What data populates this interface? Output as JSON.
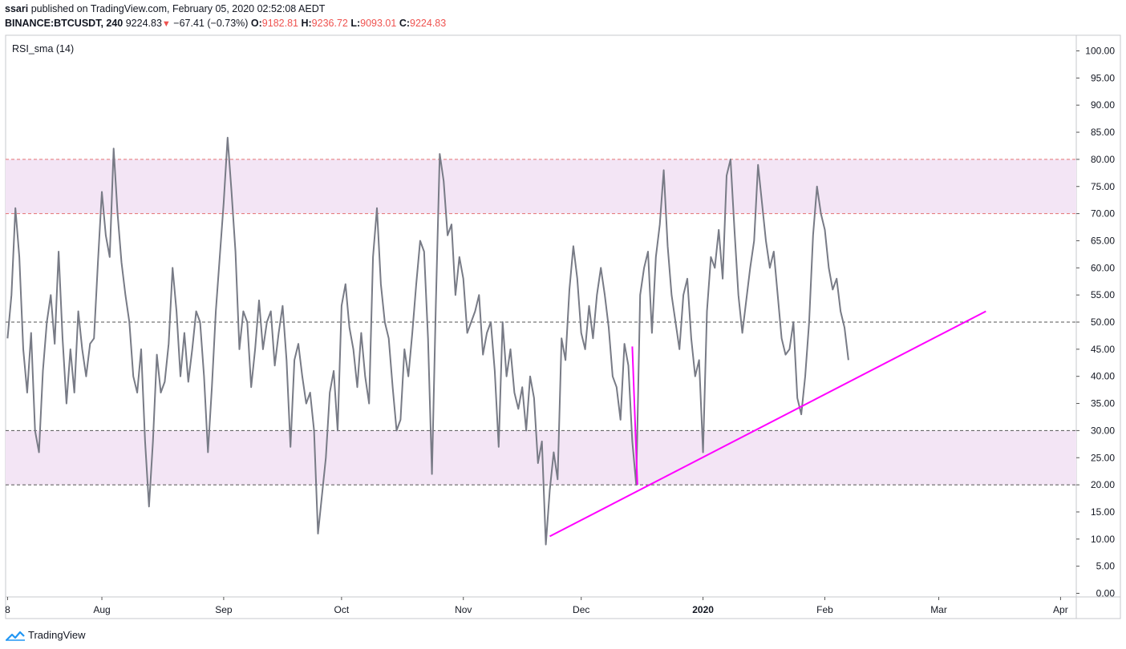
{
  "header": {
    "author": "ssari",
    "published_text": "published on TradingView.com, February 05, 2020 02:52:08 AEDT",
    "symbol": "BINANCE:BTCUSDT, 240",
    "last": "9224.83",
    "change_arrow": "▼",
    "change": "−67.41 (−0.73%)",
    "open_label": "O:",
    "open": "9182.81",
    "high_label": "H:",
    "high": "9236.72",
    "low_label": "L:",
    "low": "9093.01",
    "close_label": "C:",
    "close": "9224.83"
  },
  "footer": {
    "brand": "TradingView",
    "logo_icon": "tradingview-cloud-icon"
  },
  "colors": {
    "rsi_line": "#787b86",
    "trendline": "#ff00ff",
    "band_fill": "#f3e5f5",
    "band_line": "#e57373",
    "red": "#ef5350"
  },
  "chart_data": {
    "type": "line",
    "title": "RSI_sma (14)",
    "indicator": "RSI",
    "length": 14,
    "ylim": [
      0,
      100
    ],
    "y_ticks": [
      "100.00",
      "95.00",
      "90.00",
      "85.00",
      "80.00",
      "75.00",
      "70.00",
      "65.00",
      "60.00",
      "55.00",
      "50.00",
      "45.00",
      "40.00",
      "35.00",
      "30.00",
      "25.00",
      "20.00",
      "15.00",
      "10.00",
      "5.00",
      "0.00"
    ],
    "x_ticks": [
      "8",
      "Aug",
      "Sep",
      "Oct",
      "Nov",
      "Dec",
      "2020",
      "Feb",
      "Mar",
      "Apr"
    ],
    "x_tick_days": [
      0,
      24,
      55,
      85,
      116,
      146,
      177,
      208,
      237,
      268
    ],
    "x_range_days": [
      -0.5,
      272
    ],
    "bands": [
      {
        "from": 70,
        "to": 80,
        "name": "overbought"
      },
      {
        "from": 20,
        "to": 30,
        "name": "oversold"
      }
    ],
    "hlines": [
      80,
      70,
      50,
      30,
      20
    ],
    "series": [
      {
        "name": "RSI_sma (14)",
        "points": [
          [
            0,
            47
          ],
          [
            1,
            55
          ],
          [
            2,
            71
          ],
          [
            3,
            62
          ],
          [
            4,
            45
          ],
          [
            5,
            37
          ],
          [
            6,
            48
          ],
          [
            7,
            30
          ],
          [
            8,
            26
          ],
          [
            9,
            41
          ],
          [
            10,
            50
          ],
          [
            11,
            55
          ],
          [
            12,
            46
          ],
          [
            13,
            63
          ],
          [
            14,
            47
          ],
          [
            15,
            35
          ],
          [
            16,
            45
          ],
          [
            17,
            37
          ],
          [
            18,
            52
          ],
          [
            19,
            45
          ],
          [
            20,
            40
          ],
          [
            21,
            46
          ],
          [
            22,
            47
          ],
          [
            23,
            61
          ],
          [
            24,
            74
          ],
          [
            25,
            66
          ],
          [
            26,
            62
          ],
          [
            27,
            82
          ],
          [
            28,
            70
          ],
          [
            29,
            61
          ],
          [
            30,
            55
          ],
          [
            31,
            50
          ],
          [
            32,
            40
          ],
          [
            33,
            37
          ],
          [
            34,
            45
          ],
          [
            35,
            28
          ],
          [
            36,
            16
          ],
          [
            37,
            28
          ],
          [
            38,
            44
          ],
          [
            39,
            37
          ],
          [
            40,
            39
          ],
          [
            41,
            46
          ],
          [
            42,
            60
          ],
          [
            43,
            52
          ],
          [
            44,
            40
          ],
          [
            45,
            48
          ],
          [
            46,
            39
          ],
          [
            47,
            45
          ],
          [
            48,
            52
          ],
          [
            49,
            50
          ],
          [
            50,
            40
          ],
          [
            51,
            26
          ],
          [
            52,
            38
          ],
          [
            53,
            52
          ],
          [
            54,
            62
          ],
          [
            55,
            72
          ],
          [
            56,
            84
          ],
          [
            57,
            74
          ],
          [
            58,
            63
          ],
          [
            59,
            45
          ],
          [
            60,
            52
          ],
          [
            61,
            50
          ],
          [
            62,
            38
          ],
          [
            63,
            45
          ],
          [
            64,
            54
          ],
          [
            65,
            45
          ],
          [
            66,
            50
          ],
          [
            67,
            52
          ],
          [
            68,
            42
          ],
          [
            69,
            48
          ],
          [
            70,
            53
          ],
          [
            71,
            43
          ],
          [
            72,
            27
          ],
          [
            73,
            43
          ],
          [
            74,
            46
          ],
          [
            75,
            40
          ],
          [
            76,
            35
          ],
          [
            77,
            37
          ],
          [
            78,
            30
          ],
          [
            79,
            11
          ],
          [
            80,
            18
          ],
          [
            81,
            25
          ],
          [
            82,
            37
          ],
          [
            83,
            41
          ],
          [
            84,
            30
          ],
          [
            85,
            53
          ],
          [
            86,
            57
          ],
          [
            87,
            49
          ],
          [
            88,
            45
          ],
          [
            89,
            38
          ],
          [
            90,
            48
          ],
          [
            91,
            40
          ],
          [
            92,
            35
          ],
          [
            93,
            62
          ],
          [
            94,
            71
          ],
          [
            95,
            57
          ],
          [
            96,
            50
          ],
          [
            97,
            47
          ],
          [
            98,
            38
          ],
          [
            99,
            30
          ],
          [
            100,
            32
          ],
          [
            101,
            45
          ],
          [
            102,
            40
          ],
          [
            103,
            48
          ],
          [
            104,
            57
          ],
          [
            105,
            65
          ],
          [
            106,
            63
          ],
          [
            107,
            47
          ],
          [
            108,
            22
          ],
          [
            109,
            53
          ],
          [
            110,
            81
          ],
          [
            111,
            76
          ],
          [
            112,
            66
          ],
          [
            113,
            68
          ],
          [
            114,
            55
          ],
          [
            115,
            62
          ],
          [
            116,
            58
          ],
          [
            117,
            48
          ],
          [
            118,
            50
          ],
          [
            119,
            52
          ],
          [
            120,
            55
          ],
          [
            121,
            44
          ],
          [
            122,
            48
          ],
          [
            123,
            50
          ],
          [
            124,
            41
          ],
          [
            125,
            27
          ],
          [
            126,
            50
          ],
          [
            127,
            40
          ],
          [
            128,
            45
          ],
          [
            129,
            37
          ],
          [
            130,
            34
          ],
          [
            131,
            38
          ],
          [
            132,
            30
          ],
          [
            133,
            40
          ],
          [
            134,
            36
          ],
          [
            135,
            24
          ],
          [
            136,
            28
          ],
          [
            137,
            9
          ],
          [
            138,
            19
          ],
          [
            139,
            26
          ],
          [
            140,
            21
          ],
          [
            141,
            47
          ],
          [
            142,
            43
          ],
          [
            143,
            56
          ],
          [
            144,
            64
          ],
          [
            145,
            58
          ],
          [
            146,
            48
          ],
          [
            147,
            45
          ],
          [
            148,
            53
          ],
          [
            149,
            47
          ],
          [
            150,
            55
          ],
          [
            151,
            60
          ],
          [
            152,
            55
          ],
          [
            153,
            49
          ],
          [
            154,
            40
          ],
          [
            155,
            38
          ],
          [
            156,
            32
          ],
          [
            157,
            46
          ],
          [
            158,
            42
          ],
          [
            159,
            28
          ],
          [
            160,
            20
          ],
          [
            161,
            55
          ],
          [
            162,
            60
          ],
          [
            163,
            63
          ],
          [
            164,
            48
          ],
          [
            165,
            62
          ],
          [
            166,
            68
          ],
          [
            167,
            78
          ],
          [
            168,
            64
          ],
          [
            169,
            55
          ],
          [
            170,
            50
          ],
          [
            171,
            45
          ],
          [
            172,
            55
          ],
          [
            173,
            58
          ],
          [
            174,
            47
          ],
          [
            175,
            40
          ],
          [
            176,
            43
          ],
          [
            177,
            26
          ],
          [
            178,
            52
          ],
          [
            179,
            62
          ],
          [
            180,
            60
          ],
          [
            181,
            67
          ],
          [
            182,
            58
          ],
          [
            183,
            77
          ],
          [
            184,
            80
          ],
          [
            185,
            67
          ],
          [
            186,
            55
          ],
          [
            187,
            48
          ],
          [
            188,
            54
          ],
          [
            189,
            60
          ],
          [
            190,
            65
          ],
          [
            191,
            79
          ],
          [
            192,
            72
          ],
          [
            193,
            65
          ],
          [
            194,
            60
          ],
          [
            195,
            63
          ],
          [
            196,
            55
          ],
          [
            197,
            47
          ],
          [
            198,
            44
          ],
          [
            199,
            45
          ],
          [
            200,
            50
          ],
          [
            201,
            36
          ],
          [
            202,
            33
          ],
          [
            203,
            40
          ],
          [
            204,
            50
          ],
          [
            205,
            66
          ],
          [
            206,
            75
          ],
          [
            207,
            70
          ],
          [
            208,
            67
          ],
          [
            209,
            60
          ],
          [
            210,
            56
          ],
          [
            211,
            58
          ],
          [
            212,
            52
          ],
          [
            213,
            49
          ],
          [
            214,
            43
          ]
        ]
      }
    ],
    "trendlines": [
      {
        "name": "ascending-support",
        "from": [
          138,
          10.5
        ],
        "to": [
          249,
          52
        ]
      },
      {
        "name": "drop-mark",
        "from": [
          159,
          45.5
        ],
        "to": [
          160.3,
          20
        ]
      }
    ]
  }
}
